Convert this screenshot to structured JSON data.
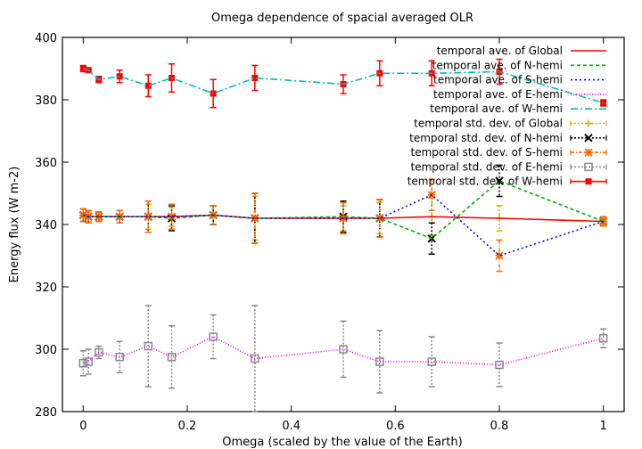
{
  "chart_data": {
    "type": "line",
    "title": "Omega dependence of spacial averaged OLR",
    "xlabel": "Omega (scaled by the value of the Earth)",
    "ylabel": "Energy flux (W m-2)",
    "xlim": [
      -0.04,
      1.04
    ],
    "ylim": [
      280,
      400
    ],
    "xticks": [
      0,
      0.2,
      0.4,
      0.6,
      0.8,
      1
    ],
    "xtick_labels": [
      "0",
      "0.2",
      "0.4",
      "0.6",
      "0.8",
      "1"
    ],
    "yticks": [
      280,
      300,
      320,
      340,
      360,
      380,
      400
    ],
    "ytick_labels": [
      "280",
      "300",
      "320",
      "340",
      "360",
      "380",
      "400"
    ],
    "legend_position": "top-right",
    "x": [
      0,
      0.01,
      0.03,
      0.07,
      0.125,
      0.17,
      0.25,
      0.33,
      0.5,
      0.57,
      0.67,
      0.8,
      1
    ],
    "series": [
      {
        "name": "temporal ave. of Global",
        "color": "#ff0000",
        "dash": "",
        "y": [
          343,
          342.5,
          342.5,
          342.5,
          342.5,
          342.5,
          343,
          342,
          342,
          342,
          342.5,
          342,
          341
        ]
      },
      {
        "name": "temporal ave. of N-hemi",
        "color": "#00b000",
        "dash": "4,3",
        "y": [
          343,
          342.5,
          342.5,
          342.5,
          342.5,
          342,
          343,
          342,
          342.5,
          342,
          335.5,
          354,
          341
        ]
      },
      {
        "name": "temporal ave. of S-hemi",
        "color": "#0000ff",
        "dash": "2,3",
        "y": [
          343,
          342.5,
          342.5,
          342.5,
          342.5,
          342.5,
          343,
          342,
          342,
          342,
          349.5,
          330,
          341
        ]
      },
      {
        "name": "temporal ave. of E-hemi",
        "color": "#ff00ff",
        "dash": "1,2",
        "y": [
          295.5,
          296,
          299,
          297.5,
          301,
          297.5,
          304,
          297,
          300,
          296,
          296,
          295,
          303.5
        ]
      },
      {
        "name": "temporal ave. of W-hemi",
        "color": "#00bbbb",
        "dash": "8,3,2,3",
        "y": [
          390,
          389.5,
          386.5,
          387.5,
          384.5,
          387,
          382,
          387,
          385,
          388.5,
          388.5,
          389,
          379
        ]
      }
    ],
    "errorbars": [
      {
        "name": "temporal std. dev. of Global",
        "color": "#d0b000",
        "marker": "plus",
        "dash": "2,2",
        "y": [
          343,
          342.5,
          342.5,
          342.5,
          342.5,
          342.5,
          343,
          342,
          342,
          342,
          342.5,
          342,
          341
        ],
        "err": [
          2,
          1.5,
          1.5,
          2,
          4,
          3,
          3,
          7,
          4,
          5,
          6,
          4,
          1
        ]
      },
      {
        "name": "temporal std. dev. of N-hemi",
        "color": "#000000",
        "marker": "cross",
        "dash": "2,2",
        "y": [
          343,
          342.5,
          342.5,
          342.5,
          342.5,
          342,
          343,
          342,
          342.5,
          342,
          335.5,
          354,
          341
        ],
        "err": [
          2,
          2,
          1.5,
          2,
          5,
          4,
          3,
          8,
          5,
          6,
          5,
          5,
          1.5
        ]
      },
      {
        "name": "temporal std. dev. of S-hemi",
        "color": "#ff6600",
        "marker": "star",
        "dash": "4,2,1,2",
        "y": [
          343,
          342.5,
          342.5,
          342.5,
          342.5,
          342.5,
          343,
          342,
          342,
          342,
          349.5,
          330,
          341
        ],
        "err": [
          2,
          2,
          1.5,
          2,
          5,
          4,
          3,
          8,
          5,
          6,
          5,
          5,
          1.5
        ]
      },
      {
        "name": "temporal std. dev. of E-hemi",
        "color": "#888888",
        "marker": "square",
        "dash": "2,2",
        "y": [
          295.5,
          296,
          299,
          297.5,
          301,
          297.5,
          304,
          297,
          300,
          296,
          296,
          295,
          303.5
        ],
        "err": [
          4,
          4,
          2,
          5,
          13,
          10,
          7,
          17,
          9,
          10,
          8,
          7,
          3
        ]
      },
      {
        "name": "temporal std. dev. of W-hemi",
        "color": "#ff0000",
        "marker": "filledsquare",
        "dash": "",
        "y": [
          390,
          389.5,
          386.5,
          387.5,
          384.5,
          387,
          382,
          387,
          385,
          388.5,
          388.5,
          389,
          379
        ],
        "err": [
          1,
          0.5,
          1,
          2,
          3.5,
          4.5,
          4.5,
          4,
          3,
          4,
          4,
          4,
          1
        ]
      }
    ]
  }
}
